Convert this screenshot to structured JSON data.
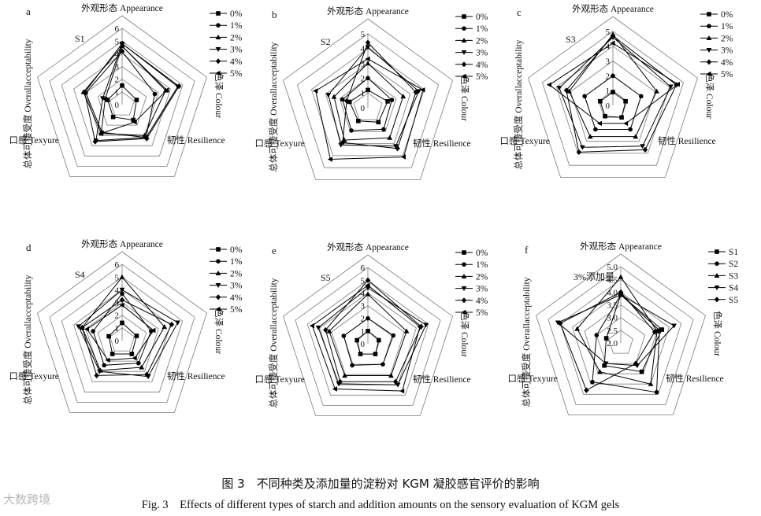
{
  "figure": {
    "caption_cn": "图 3　不同种类及添加量的淀粉对 KGM 凝胶感官评价的影响",
    "caption_en": "Fig. 3　Effects of different types of starch and addition amounts on the sensory evaluation of KGM gels",
    "watermark": "大数跨境"
  },
  "chart_data": [
    {
      "type": "radar",
      "letter": "a",
      "tag": "S1",
      "axes": [
        "外观形态 Appearance",
        "色泽 Colour",
        "韧性 Resilience",
        "口感 Texyure",
        "总体可接受度 Overallacceptability"
      ],
      "rlim": [
        0,
        6
      ],
      "ticks": [
        "0",
        "1",
        "2",
        "3",
        "4",
        "5",
        "6"
      ],
      "legend": "top-right",
      "series": [
        {
          "name": "0%",
          "marker": "square",
          "values": [
            1.5,
            1.2,
            1.5,
            1.2,
            1.2
          ]
        },
        {
          "name": "1%",
          "marker": "circle",
          "values": [
            4.2,
            2.7,
            3.2,
            2.7,
            3.0
          ]
        },
        {
          "name": "2%",
          "marker": "triangle-up",
          "values": [
            4.6,
            3.6,
            3.0,
            2.8,
            3.2
          ]
        },
        {
          "name": "3%",
          "marker": "triangle-down",
          "values": [
            4.8,
            4.6,
            3.2,
            3.5,
            1.6
          ]
        },
        {
          "name": "4%",
          "marker": "diamond",
          "values": [
            4.8,
            4.7,
            3.3,
            3.6,
            3.1
          ]
        },
        {
          "name": "5%",
          "marker": "triangle-left",
          "values": [
            4.6,
            3.7,
            1.7,
            2.8,
            1.4
          ]
        }
      ]
    },
    {
      "type": "radar",
      "letter": "b",
      "tag": "S2",
      "axes": [
        "外观形态 Appearance",
        "色泽 Colour",
        "韧性 Resilience",
        "口感 Texyure",
        "总体可接受度 Overallacceptability"
      ],
      "rlim": [
        0,
        5
      ],
      "ticks": [
        "0",
        "1",
        "2",
        "3",
        "4",
        "5"
      ],
      "legend": "top-right",
      "series": [
        {
          "name": "0%",
          "marker": "square",
          "values": [
            1.2,
            1.4,
            1.2,
            1.1,
            1.3
          ]
        },
        {
          "name": "1%",
          "marker": "circle",
          "values": [
            2.0,
            1.7,
            1.8,
            1.9,
            1.8
          ]
        },
        {
          "name": "2%",
          "marker": "triangle-up",
          "values": [
            3.0,
            2.5,
            2.5,
            2.7,
            2.4
          ]
        },
        {
          "name": "3%",
          "marker": "triangle-down",
          "values": [
            4.1,
            3.6,
            3.2,
            3.1,
            2.8
          ]
        },
        {
          "name": "4%",
          "marker": "diamond",
          "values": [
            4.4,
            3.4,
            3.4,
            2.9,
            1.5
          ]
        },
        {
          "name": "5%",
          "marker": "triangle-left",
          "values": [
            3.3,
            3.9,
            4.1,
            4.3,
            3.7
          ]
        }
      ]
    },
    {
      "type": "radar",
      "letter": "c",
      "tag": "S3",
      "axes": [
        "外观形态 Appearance",
        "色泽 Colour",
        "韧性 Resilience",
        "口感 Texyure",
        "总体可接受度 Overallacceptability"
      ],
      "rlim": [
        0,
        5
      ],
      "ticks": [
        "0",
        "1",
        "2",
        "3",
        "4",
        "5"
      ],
      "legend": "top-right",
      "series": [
        {
          "name": "0%",
          "marker": "square",
          "values": [
            0.9,
            0.9,
            1.0,
            0.9,
            0.9
          ]
        },
        {
          "name": "1%",
          "marker": "circle",
          "values": [
            2.0,
            2.0,
            2.0,
            2.0,
            2.0
          ]
        },
        {
          "name": "2%",
          "marker": "triangle-up",
          "values": [
            4.8,
            3.1,
            2.6,
            2.6,
            3.1
          ]
        },
        {
          "name": "3%",
          "marker": "triangle-down",
          "values": [
            4.6,
            4.1,
            3.4,
            3.5,
            3.8
          ]
        },
        {
          "name": "4%",
          "marker": "diamond",
          "values": [
            4.7,
            4.5,
            3.7,
            3.9,
            3.3
          ]
        },
        {
          "name": "5%",
          "marker": "triangle-left",
          "values": [
            4.2,
            4.6,
            1.5,
            1.5,
            4.5
          ]
        }
      ]
    },
    {
      "type": "radar",
      "letter": "d",
      "tag": "S4",
      "axes": [
        "外观形态 Appearance",
        "色泽 Colour",
        "韧性 Resilience",
        "口感 Texyure",
        "总体可接受度 Overallacceptability"
      ],
      "rlim": [
        0,
        6
      ],
      "ticks": [
        "0",
        "1",
        "2",
        "3",
        "4",
        "5",
        "6"
      ],
      "legend": "top-right",
      "series": [
        {
          "name": "0%",
          "marker": "square",
          "values": [
            1.4,
            1.2,
            1.3,
            1.3,
            1.1
          ]
        },
        {
          "name": "1%",
          "marker": "circle",
          "values": [
            3.7,
            2.4,
            2.2,
            2.4,
            2.4
          ]
        },
        {
          "name": "2%",
          "marker": "triangle-up",
          "values": [
            5.0,
            3.5,
            2.6,
            2.9,
            3.3
          ]
        },
        {
          "name": "3%",
          "marker": "triangle-down",
          "values": [
            4.0,
            4.6,
            3.5,
            3.0,
            3.6
          ]
        },
        {
          "name": "4%",
          "marker": "diamond",
          "values": [
            3.2,
            4.1,
            3.3,
            3.4,
            3.3
          ]
        },
        {
          "name": "5%",
          "marker": "triangle-left",
          "values": [
            2.8,
            2.6,
            1.7,
            1.9,
            2.9
          ]
        }
      ]
    },
    {
      "type": "radar",
      "letter": "e",
      "tag": "S5",
      "axes": [
        "外观形态 Appearance",
        "色泽 Colour",
        "韧性 Resilience",
        "口感 Texyure",
        "总体可接受度 Overallacceptability"
      ],
      "rlim": [
        0,
        6
      ],
      "ticks": [
        "0",
        "1",
        "2",
        "3",
        "4",
        "5",
        "6"
      ],
      "legend": "top-right",
      "series": [
        {
          "name": "0%",
          "marker": "square",
          "values": [
            1.0,
            0.9,
            1.0,
            1.0,
            0.9
          ]
        },
        {
          "name": "1%",
          "marker": "circle",
          "values": [
            2.0,
            2.1,
            2.0,
            2.1,
            2.0
          ]
        },
        {
          "name": "2%",
          "marker": "triangle-up",
          "values": [
            3.9,
            3.2,
            3.1,
            3.1,
            3.2
          ]
        },
        {
          "name": "3%",
          "marker": "triangle-down",
          "values": [
            4.4,
            4.8,
            4.0,
            3.9,
            4.1
          ]
        },
        {
          "name": "4%",
          "marker": "diamond",
          "values": [
            5.0,
            4.4,
            3.7,
            3.7,
            3.5
          ]
        },
        {
          "name": "5%",
          "marker": "triangle-left",
          "values": [
            4.6,
            4.3,
            4.6,
            4.4,
            4.6
          ]
        }
      ]
    },
    {
      "type": "radar",
      "letter": "f",
      "tag": "3%添加量",
      "axes": [
        "外观形态 Appearance",
        "色泽 Colour",
        "韧性 Resilience",
        "口感 Texyure",
        "总体可接受度 Overallacceptability"
      ],
      "rlim": [
        2.0,
        5.0
      ],
      "ticks": [
        "2.0",
        "2.5",
        "3.0",
        "3.5",
        "4.0",
        "4.5",
        "5.0"
      ],
      "legend": "top-right",
      "series": [
        {
          "name": "S1",
          "marker": "square",
          "values": [
            3.9,
            3.7,
            3.4,
            3.1,
            2.6
          ]
        },
        {
          "name": "S2",
          "marker": "circle",
          "values": [
            3.9,
            3.6,
            4.4,
            3.9,
            3.0
          ]
        },
        {
          "name": "S3",
          "marker": "triangle-up",
          "values": [
            4.6,
            3.5,
            4.0,
            3.4,
            3.8
          ]
        },
        {
          "name": "S4",
          "marker": "triangle-down",
          "values": [
            3.9,
            4.2,
            3.1,
            3.0,
            4.6
          ]
        },
        {
          "name": "S5",
          "marker": "diamond",
          "values": [
            4.0,
            3.4,
            3.0,
            4.3,
            4.5
          ]
        }
      ]
    }
  ]
}
